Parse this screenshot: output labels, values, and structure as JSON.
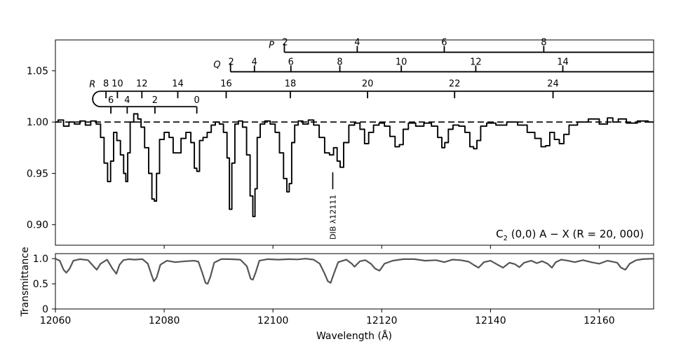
{
  "chart_data": [
    {
      "type": "line",
      "panel": "top",
      "title": "",
      "xlabel": "",
      "ylabel": "",
      "xlim": [
        12060,
        12170
      ],
      "ylim": [
        0.88,
        1.08
      ],
      "ytick_values": [
        0.9,
        0.95,
        1.0,
        1.05
      ],
      "ytick_labels": [
        "0.90",
        "0.95",
        "1.00",
        "1.05"
      ],
      "xtick_values": [
        12080,
        12100,
        12120,
        12140,
        12160
      ],
      "continuum_level": 1.0,
      "annotation": {
        "prefix": "C",
        "subscript": "2",
        "text": " (0,0) A − X (R = 20, 000)"
      },
      "dib": {
        "label": "DIB λ12111",
        "x": 12111
      },
      "branches": [
        {
          "name": "P",
          "name_x": 12100.5,
          "line_y": 1.068,
          "ticks": [
            {
              "x": 12102.1,
              "label": "2"
            },
            {
              "x": 12115.5,
              "label": "4"
            },
            {
              "x": 12131.5,
              "label": "6"
            },
            {
              "x": 12149.8,
              "label": "8"
            }
          ]
        },
        {
          "name": "Q",
          "name_x": 12090.5,
          "line_y": 1.049,
          "ticks": [
            {
              "x": 12092.2,
              "label": "2"
            },
            {
              "x": 12096.6,
              "label": "4"
            },
            {
              "x": 12103.3,
              "label": "6"
            },
            {
              "x": 12112.3,
              "label": "8"
            },
            {
              "x": 12123.6,
              "label": "10"
            },
            {
              "x": 12137.3,
              "label": "12"
            },
            {
              "x": 12153.3,
              "label": "14"
            }
          ]
        },
        {
          "name": "R",
          "name_x": 12066.8,
          "line_y": 1.03,
          "inner_line_y": 1.015,
          "ticks": [
            {
              "x": 12069.3,
              "label": "8"
            },
            {
              "x": 12071.4,
              "label": "10"
            },
            {
              "x": 12075.9,
              "label": "12"
            },
            {
              "x": 12082.5,
              "label": "14"
            },
            {
              "x": 12091.4,
              "label": "16"
            },
            {
              "x": 12103.2,
              "label": "18"
            },
            {
              "x": 12117.4,
              "label": "20"
            },
            {
              "x": 12133.4,
              "label": "22"
            },
            {
              "x": 12151.5,
              "label": "24"
            }
          ],
          "inner_ticks": [
            {
              "x": 12070.2,
              "label": "6"
            },
            {
              "x": 12073.2,
              "label": "4"
            },
            {
              "x": 12078.3,
              "label": "2"
            },
            {
              "x": 12086.0,
              "label": "0"
            }
          ]
        }
      ],
      "series": [
        {
          "x": [
            12060,
            12061,
            12062,
            12063,
            12064,
            12065,
            12066,
            12067,
            12068,
            12068.6,
            12069.3,
            12069.9,
            12070.4,
            12071,
            12071.6,
            12072.3,
            12072.8,
            12073.1,
            12073.5,
            12074,
            12074.8,
            12075.5,
            12076,
            12076.8,
            12077.5,
            12078,
            12078.4,
            12078.8,
            12079.5,
            12080.5,
            12081.3,
            12082,
            12082.7,
            12083.5,
            12084.5,
            12085.3,
            12085.8,
            12086.2,
            12086.8,
            12087.5,
            12088.3,
            12089,
            12089.8,
            12090.5,
            12091.3,
            12091.8,
            12092.2,
            12092.7,
            12093.3,
            12094,
            12094.8,
            12095.5,
            12096.1,
            12096.5,
            12096.9,
            12097.3,
            12098,
            12099,
            12100,
            12100.8,
            12101.6,
            12102.3,
            12102.8,
            12103.2,
            12103.7,
            12104.3,
            12105,
            12106,
            12107,
            12108,
            12109,
            12110,
            12110.8,
            12111.5,
            12112.1,
            12112.6,
            12113.4,
            12114.5,
            12115.5,
            12116.5,
            12117.2,
            12118,
            12119,
            12120,
            12121,
            12122,
            12122.9,
            12123.6,
            12124.3,
            12125.5,
            12127,
            12128.5,
            12129.8,
            12130.8,
            12131.3,
            12131.9,
            12132.6,
            12133.6,
            12134.8,
            12135.8,
            12136.6,
            12137.2,
            12137.8,
            12138.6,
            12140,
            12142,
            12144,
            12146,
            12147.5,
            12148.8,
            12149.8,
            12150.5,
            12151.3,
            12152.2,
            12153.1,
            12153.9,
            12155,
            12157,
            12159,
            12161,
            12162,
            12163,
            12164,
            12166,
            12168,
            12170
          ],
          "y": [
            1.0,
            1.002,
            0.996,
            1.0,
            0.998,
            1.001,
            0.997,
            1.001,
            0.998,
            0.985,
            0.96,
            0.942,
            0.962,
            0.99,
            0.982,
            0.968,
            0.95,
            0.942,
            0.97,
            1.0,
            1.008,
            1.003,
            0.995,
            0.975,
            0.95,
            0.925,
            0.923,
            0.95,
            0.983,
            0.99,
            0.985,
            0.97,
            0.97,
            0.984,
            0.99,
            0.98,
            0.955,
            0.952,
            0.982,
            0.985,
            0.99,
            0.997,
            1.0,
            0.998,
            0.99,
            0.965,
            0.915,
            0.96,
            0.998,
            1.001,
            0.995,
            0.968,
            0.928,
            0.908,
            0.935,
            0.985,
            0.998,
            1.001,
            0.998,
            0.99,
            0.97,
            0.945,
            0.932,
            0.94,
            0.98,
            0.997,
            1.001,
            0.998,
            1.002,
            0.997,
            0.985,
            0.97,
            0.968,
            0.975,
            0.962,
            0.956,
            0.98,
            0.997,
            0.999,
            0.993,
            0.979,
            0.99,
            0.997,
            0.999,
            0.996,
            0.986,
            0.976,
            0.978,
            0.993,
            0.999,
            0.996,
            0.999,
            0.996,
            0.985,
            0.975,
            0.98,
            0.993,
            0.997,
            0.996,
            0.99,
            0.976,
            0.974,
            0.982,
            0.996,
            0.999,
            0.997,
            1.0,
            0.997,
            0.99,
            0.984,
            0.976,
            0.977,
            0.99,
            0.983,
            0.979,
            0.988,
            0.997,
            1.0,
            1.003,
            0.998,
            1.004,
            1.0,
            1.003,
            0.999,
            1.001,
            1.0
          ]
        }
      ]
    },
    {
      "type": "line",
      "panel": "bottom",
      "title": "",
      "xlabel": "Wavelength (Å)",
      "ylabel": "Transmittance",
      "xlim": [
        12060,
        12170
      ],
      "ylim": [
        0,
        1.1
      ],
      "ytick_values": [
        0,
        0.5,
        1.0
      ],
      "ytick_labels": [
        "0",
        "0.5",
        "1.0"
      ],
      "xtick_values": [
        12060,
        12080,
        12100,
        12120,
        12140,
        12160
      ],
      "xtick_labels": [
        "12060",
        "12080",
        "12100",
        "12120",
        "12140",
        "12160"
      ],
      "line_color": "#555555",
      "series": [
        {
          "x": [
            12060,
            12060.8,
            12061.5,
            12062,
            12062.6,
            12063.3,
            12064.5,
            12066,
            12067,
            12067.6,
            12068.3,
            12069.5,
            12070.5,
            12071.2,
            12071.8,
            12072.5,
            12073.5,
            12074.5,
            12076,
            12077,
            12077.6,
            12078.1,
            12078.6,
            12079.3,
            12080.5,
            12082,
            12084,
            12085.5,
            12086.3,
            12087,
            12087.6,
            12088,
            12088.5,
            12089.2,
            12090.5,
            12092,
            12094,
            12095.2,
            12095.9,
            12096.3,
            12096.8,
            12097.5,
            12099,
            12101,
            12103,
            12104.5,
            12106,
            12107.5,
            12108.6,
            12109.5,
            12110.1,
            12110.6,
            12111.2,
            12112,
            12113.5,
            12114.5,
            12115,
            12116,
            12117,
            12118,
            12118.8,
            12119.6,
            12120.5,
            12122,
            12124,
            12126,
            12128,
            12130,
            12131.5,
            12133,
            12134.5,
            12136,
            12137,
            12137.8,
            12138.8,
            12140,
            12141,
            12142.3,
            12143.5,
            12144.5,
            12145.3,
            12146.2,
            12147.5,
            12148.5,
            12149.5,
            12150.5,
            12151.3,
            12152,
            12153,
            12154.2,
            12155.5,
            12157,
            12158.5,
            12160,
            12161.5,
            12163.3,
            12164,
            12164.8,
            12165.6,
            12166.8,
            12168,
            12170
          ],
          "y": [
            1.0,
            0.96,
            0.78,
            0.72,
            0.8,
            0.96,
            0.99,
            0.97,
            0.85,
            0.78,
            0.9,
            0.98,
            0.8,
            0.7,
            0.88,
            0.97,
            0.99,
            0.98,
            0.99,
            0.9,
            0.7,
            0.55,
            0.62,
            0.88,
            0.96,
            0.93,
            0.95,
            0.96,
            0.94,
            0.72,
            0.52,
            0.5,
            0.64,
            0.92,
            0.99,
            0.99,
            0.98,
            0.85,
            0.6,
            0.58,
            0.72,
            0.96,
            0.99,
            0.98,
            0.99,
            0.985,
            1.0,
            0.98,
            0.9,
            0.7,
            0.55,
            0.52,
            0.7,
            0.93,
            0.98,
            0.9,
            0.84,
            0.95,
            0.97,
            0.9,
            0.8,
            0.76,
            0.9,
            0.96,
            0.99,
            0.99,
            0.96,
            0.97,
            0.93,
            0.98,
            0.97,
            0.94,
            0.87,
            0.82,
            0.93,
            0.96,
            0.9,
            0.82,
            0.92,
            0.89,
            0.83,
            0.92,
            0.96,
            0.91,
            0.95,
            0.9,
            0.82,
            0.93,
            0.98,
            0.96,
            0.93,
            0.97,
            0.93,
            0.9,
            0.96,
            0.92,
            0.82,
            0.78,
            0.9,
            0.97,
            0.99,
            1.0
          ]
        }
      ]
    }
  ]
}
